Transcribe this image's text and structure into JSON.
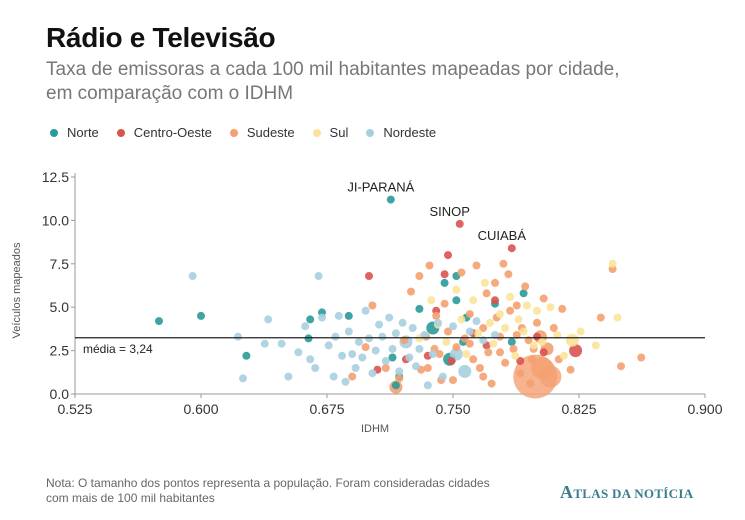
{
  "title": "Rádio e Televisão",
  "subtitle": "Taxa de emissoras a cada 100 mil habitantes mapeadas por cidade, em comparação com o IDHM",
  "note": "Nota: O tamanho dos pontos representa a população. Foram consideradas cidades com mais de 100 mil habitantes",
  "logo": {
    "initial": "A",
    "rest": "TLAS DA NOTÍCIA"
  },
  "colors": {
    "Norte": "#2a9a9a",
    "Centro-Oeste": "#d9534f",
    "Sudeste": "#f4a070",
    "Sul": "#fbe39a",
    "Nordeste": "#a8cfe0",
    "mean_line": "#222222",
    "axis_text": "#333333"
  },
  "chart_data": {
    "type": "scatter",
    "title": "Rádio e Televisão",
    "xlabel": "IDHM",
    "ylabel": "Veículos mapeados",
    "xlim": [
      0.525,
      0.9
    ],
    "ylim": [
      0,
      13
    ],
    "x_ticks": [
      "0.525",
      "0.600",
      "0.675",
      "0.750",
      "0.825",
      "0.900"
    ],
    "y_ticks": [
      "0.0",
      "2.5",
      "5.0",
      "7.5",
      "10.0",
      "12.5"
    ],
    "grid": false,
    "legend_position": "top-left",
    "mean": {
      "value": 3.24,
      "label": "média = 3,24"
    },
    "annotations": [
      {
        "label": "JI-PARANÁ",
        "x": 0.713,
        "y": 11.2
      },
      {
        "label": "SINOP",
        "x": 0.754,
        "y": 9.8
      },
      {
        "label": "CUIABÁ",
        "x": 0.785,
        "y": 8.4
      }
    ],
    "series": [
      {
        "name": "Norte",
        "points": [
          [
            0.575,
            4.2,
            1
          ],
          [
            0.6,
            4.5,
            1
          ],
          [
            0.627,
            2.2,
            1
          ],
          [
            0.664,
            3.2,
            1
          ],
          [
            0.665,
            4.3,
            1
          ],
          [
            0.672,
            4.7,
            1
          ],
          [
            0.688,
            4.5,
            1
          ],
          [
            0.713,
            11.2,
            1
          ],
          [
            0.714,
            2.1,
            1
          ],
          [
            0.716,
            0.5,
            1
          ],
          [
            0.718,
            1.0,
            1
          ],
          [
            0.73,
            4.9,
            1
          ],
          [
            0.738,
            3.8,
            2
          ],
          [
            0.745,
            6.4,
            1
          ],
          [
            0.748,
            2.0,
            2
          ],
          [
            0.752,
            5.4,
            1
          ],
          [
            0.752,
            6.8,
            1
          ],
          [
            0.756,
            3.0,
            1
          ],
          [
            0.758,
            4.4,
            1
          ],
          [
            0.775,
            5.2,
            1
          ],
          [
            0.785,
            3.0,
            1
          ],
          [
            0.792,
            5.8,
            1
          ]
        ]
      },
      {
        "name": "Centro-Oeste",
        "points": [
          [
            0.7,
            6.8,
            1
          ],
          [
            0.705,
            1.4,
            1
          ],
          [
            0.722,
            2.0,
            1
          ],
          [
            0.735,
            2.2,
            1
          ],
          [
            0.74,
            4.8,
            1
          ],
          [
            0.745,
            6.9,
            1
          ],
          [
            0.747,
            8.0,
            1
          ],
          [
            0.749,
            1.9,
            1
          ],
          [
            0.754,
            9.8,
            1
          ],
          [
            0.762,
            3.5,
            1
          ],
          [
            0.77,
            2.8,
            1
          ],
          [
            0.775,
            5.4,
            1
          ],
          [
            0.785,
            8.4,
            1
          ],
          [
            0.79,
            1.9,
            1
          ],
          [
            0.8,
            3.3,
            1
          ],
          [
            0.804,
            2.4,
            1
          ],
          [
            0.823,
            2.5,
            2
          ]
        ]
      },
      {
        "name": "Sudeste",
        "points": [
          [
            0.69,
            1.0,
            1
          ],
          [
            0.698,
            2.7,
            1
          ],
          [
            0.702,
            5.1,
            1
          ],
          [
            0.71,
            1.5,
            1
          ],
          [
            0.716,
            0.4,
            2
          ],
          [
            0.718,
            0.9,
            1
          ],
          [
            0.721,
            3.1,
            1
          ],
          [
            0.725,
            5.9,
            1
          ],
          [
            0.73,
            6.8,
            1
          ],
          [
            0.731,
            1.4,
            1
          ],
          [
            0.734,
            3.3,
            1
          ],
          [
            0.736,
            7.4,
            1
          ],
          [
            0.739,
            2.6,
            1
          ],
          [
            0.74,
            4.5,
            1
          ],
          [
            0.743,
            0.8,
            1
          ],
          [
            0.745,
            5.2,
            1
          ],
          [
            0.747,
            3.6,
            1
          ],
          [
            0.75,
            0.8,
            1
          ],
          [
            0.752,
            2.7,
            1
          ],
          [
            0.755,
            7.0,
            1
          ],
          [
            0.757,
            3.2,
            1
          ],
          [
            0.76,
            4.6,
            1
          ],
          [
            0.762,
            2.0,
            1
          ],
          [
            0.764,
            7.4,
            1
          ],
          [
            0.766,
            1.5,
            1
          ],
          [
            0.768,
            3.8,
            1
          ],
          [
            0.77,
            5.8,
            1
          ],
          [
            0.771,
            2.4,
            1
          ],
          [
            0.773,
            0.6,
            1
          ],
          [
            0.775,
            6.4,
            1
          ],
          [
            0.776,
            4.4,
            1
          ],
          [
            0.778,
            3.3,
            1
          ],
          [
            0.78,
            7.5,
            1
          ],
          [
            0.781,
            1.8,
            1
          ],
          [
            0.783,
            6.9,
            1
          ],
          [
            0.784,
            4.8,
            1
          ],
          [
            0.786,
            2.6,
            1
          ],
          [
            0.788,
            5.1,
            1
          ],
          [
            0.79,
            1.2,
            1
          ],
          [
            0.791,
            3.8,
            1
          ],
          [
            0.793,
            6.2,
            1
          ],
          [
            0.795,
            3.1,
            1
          ],
          [
            0.796,
            0.6,
            1
          ],
          [
            0.797,
            2.0,
            1
          ],
          [
            0.799,
            1.0,
            4
          ],
          [
            0.8,
            4.1,
            1
          ],
          [
            0.802,
            3.3,
            2
          ],
          [
            0.803,
            1.5,
            3
          ],
          [
            0.804,
            5.5,
            1
          ],
          [
            0.806,
            2.6,
            2
          ],
          [
            0.808,
            1.0,
            3
          ],
          [
            0.81,
            3.8,
            1
          ],
          [
            0.813,
            2.0,
            1
          ],
          [
            0.815,
            4.9,
            1
          ],
          [
            0.82,
            1.4,
            1
          ],
          [
            0.838,
            4.4,
            1
          ],
          [
            0.845,
            7.2,
            1
          ],
          [
            0.85,
            1.6,
            1
          ],
          [
            0.862,
            2.1,
            1
          ],
          [
            0.735,
            1.5,
            1
          ],
          [
            0.742,
            2.3,
            1
          ],
          [
            0.76,
            2.9,
            1
          ],
          [
            0.768,
            1.0,
            1
          ],
          [
            0.778,
            2.4,
            1
          ],
          [
            0.788,
            3.4,
            1
          ],
          [
            0.798,
            2.6,
            1
          ]
        ]
      },
      {
        "name": "Sul",
        "points": [
          [
            0.73,
            3.2,
            1
          ],
          [
            0.737,
            5.4,
            1
          ],
          [
            0.741,
            4.0,
            1
          ],
          [
            0.746,
            3.0,
            1
          ],
          [
            0.752,
            6.0,
            1
          ],
          [
            0.755,
            4.3,
            1
          ],
          [
            0.758,
            2.3,
            1
          ],
          [
            0.762,
            5.4,
            1
          ],
          [
            0.765,
            3.5,
            1
          ],
          [
            0.769,
            6.4,
            1
          ],
          [
            0.772,
            4.1,
            1
          ],
          [
            0.774,
            2.9,
            1
          ],
          [
            0.778,
            4.6,
            1
          ],
          [
            0.781,
            3.8,
            1
          ],
          [
            0.784,
            5.6,
            1
          ],
          [
            0.787,
            2.2,
            1
          ],
          [
            0.789,
            4.3,
            1
          ],
          [
            0.792,
            3.6,
            1
          ],
          [
            0.794,
            5.1,
            1
          ],
          [
            0.798,
            2.8,
            1
          ],
          [
            0.8,
            4.8,
            1
          ],
          [
            0.803,
            3.0,
            1
          ],
          [
            0.808,
            5.0,
            1
          ],
          [
            0.812,
            3.4,
            1
          ],
          [
            0.816,
            2.2,
            1
          ],
          [
            0.821,
            3.1,
            2
          ],
          [
            0.826,
            3.6,
            1
          ],
          [
            0.835,
            2.8,
            1
          ],
          [
            0.845,
            7.5,
            1
          ],
          [
            0.848,
            4.4,
            1
          ]
        ]
      },
      {
        "name": "Nordeste",
        "points": [
          [
            0.595,
            6.8,
            1
          ],
          [
            0.622,
            3.3,
            1
          ],
          [
            0.625,
            0.9,
            1
          ],
          [
            0.638,
            2.9,
            1
          ],
          [
            0.64,
            4.3,
            1
          ],
          [
            0.648,
            2.9,
            1
          ],
          [
            0.652,
            1.0,
            1
          ],
          [
            0.658,
            2.4,
            1
          ],
          [
            0.662,
            3.9,
            1
          ],
          [
            0.665,
            2.0,
            1
          ],
          [
            0.668,
            1.5,
            1
          ],
          [
            0.67,
            6.8,
            1
          ],
          [
            0.672,
            4.4,
            1
          ],
          [
            0.676,
            2.8,
            1
          ],
          [
            0.679,
            1.0,
            1
          ],
          [
            0.68,
            3.3,
            1
          ],
          [
            0.682,
            4.5,
            1
          ],
          [
            0.684,
            2.2,
            1
          ],
          [
            0.686,
            0.7,
            1
          ],
          [
            0.688,
            3.6,
            1
          ],
          [
            0.69,
            2.3,
            1
          ],
          [
            0.692,
            1.5,
            1
          ],
          [
            0.694,
            3.0,
            1
          ],
          [
            0.696,
            2.1,
            1
          ],
          [
            0.698,
            4.8,
            1
          ],
          [
            0.7,
            3.2,
            1
          ],
          [
            0.702,
            1.2,
            1
          ],
          [
            0.704,
            2.5,
            1
          ],
          [
            0.706,
            4.0,
            1
          ],
          [
            0.708,
            3.3,
            1
          ],
          [
            0.71,
            1.9,
            1
          ],
          [
            0.712,
            4.4,
            1
          ],
          [
            0.714,
            2.6,
            1
          ],
          [
            0.716,
            3.5,
            1
          ],
          [
            0.718,
            1.3,
            1
          ],
          [
            0.72,
            4.1,
            1
          ],
          [
            0.722,
            3.0,
            2
          ],
          [
            0.724,
            2.1,
            1
          ],
          [
            0.726,
            3.8,
            1
          ],
          [
            0.728,
            1.6,
            1
          ],
          [
            0.73,
            2.6,
            1
          ],
          [
            0.733,
            3.4,
            1
          ],
          [
            0.735,
            0.5,
            1
          ],
          [
            0.738,
            2.3,
            1
          ],
          [
            0.741,
            4.1,
            1
          ],
          [
            0.744,
            1.0,
            1
          ],
          [
            0.75,
            3.9,
            1
          ],
          [
            0.752,
            2.3,
            2
          ],
          [
            0.757,
            1.3,
            2
          ],
          [
            0.76,
            3.6,
            1
          ],
          [
            0.764,
            4.2,
            1
          ],
          [
            0.768,
            3.1,
            1
          ],
          [
            0.775,
            3.4,
            1
          ]
        ]
      }
    ]
  }
}
